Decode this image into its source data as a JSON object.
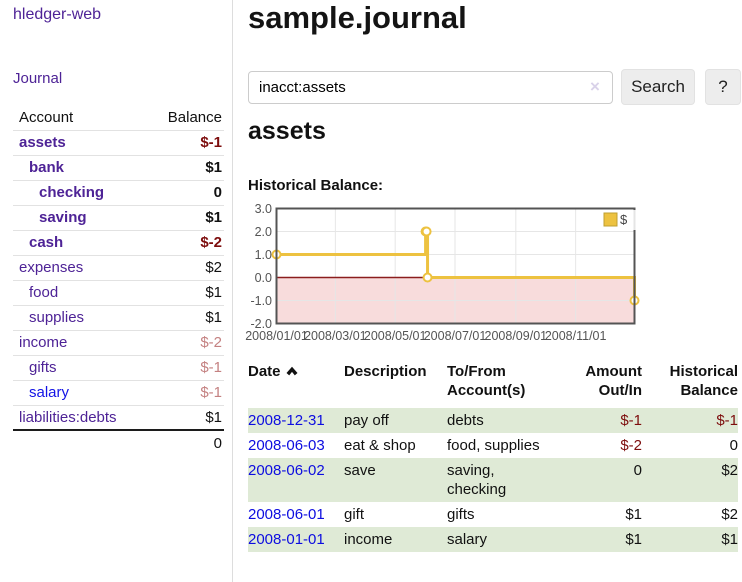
{
  "app": {
    "title": "hledger-web"
  },
  "sidebar": {
    "journal_link": "Journal",
    "accounts_table": {
      "headers": {
        "account": "Account",
        "balance": "Balance"
      },
      "rows": [
        {
          "name": "assets",
          "balance": "$-1",
          "level": 0,
          "bold": true,
          "negative": "strong"
        },
        {
          "name": "bank",
          "balance": "$1",
          "level": 1,
          "bold": true
        },
        {
          "name": "checking",
          "balance": "0",
          "level": 2,
          "bold": true
        },
        {
          "name": "saving",
          "balance": "$1",
          "level": 2,
          "bold": true
        },
        {
          "name": "cash",
          "balance": "$-2",
          "level": 1,
          "bold": true,
          "negative": "strong"
        },
        {
          "name": "expenses",
          "balance": "$2",
          "level": 0
        },
        {
          "name": "food",
          "balance": "$1",
          "level": 1
        },
        {
          "name": "supplies",
          "balance": "$1",
          "level": 1
        },
        {
          "name": "income",
          "balance": "$-2",
          "level": 0,
          "negative": "soft"
        },
        {
          "name": "gifts",
          "balance": "$-1",
          "level": 1,
          "negative": "soft"
        },
        {
          "name": "salary",
          "balance": "$-1",
          "level": 1,
          "negative": "soft",
          "unvisited": true
        },
        {
          "name": "liabilities:debts",
          "balance": "$1",
          "level": 0,
          "last": true
        }
      ],
      "total": "0"
    }
  },
  "main": {
    "title": "sample.journal",
    "search": {
      "value": "inacct:assets",
      "clear_label": "×",
      "button_label": "Search",
      "help_label": "?"
    },
    "account_heading": "assets",
    "chart_label": "Historical Balance:"
  },
  "chart_data": {
    "type": "line",
    "title": "Historical Balance:",
    "step": true,
    "series": [
      {
        "name": "$",
        "color": "#edc240",
        "points": [
          {
            "date": "2008-01-01",
            "value": 1
          },
          {
            "date": "2008-06-01",
            "value": 2
          },
          {
            "date": "2008-06-02",
            "value": 2
          },
          {
            "date": "2008-06-03",
            "value": 0
          },
          {
            "date": "2008-12-31",
            "value": -1
          }
        ]
      }
    ],
    "x_range": [
      "2008-01-01",
      "2008-12-31"
    ],
    "x_ticks": [
      "2008/01/01",
      "2008/03/01",
      "2008/05/01",
      "2008/07/01",
      "2008/09/01",
      "2008/11/01"
    ],
    "y_ticks": [
      3.0,
      2.0,
      1.0,
      0.0,
      -1.0,
      -2.0
    ],
    "ylim": [
      -2,
      3
    ],
    "grid": true,
    "legend": {
      "label": "$",
      "position": "top-right"
    },
    "colors": {
      "line": "#edc240",
      "marker_fill": "#ffffff",
      "negative_region": "#f8dcdc",
      "zero_line": "#8b1d1d",
      "border": "#545454",
      "gridline": "#e6e6e6",
      "tick_text": "#545454"
    }
  },
  "register_table": {
    "headers": [
      {
        "key": "date",
        "lines": [
          "Date"
        ],
        "align": "left",
        "sort": "asc"
      },
      {
        "key": "description",
        "lines": [
          "Description"
        ],
        "align": "left"
      },
      {
        "key": "accounts",
        "lines": [
          "To/From",
          "Account(s)"
        ],
        "align": "left"
      },
      {
        "key": "amount",
        "lines": [
          "Amount",
          "Out/In"
        ],
        "align": "right"
      },
      {
        "key": "balance",
        "lines": [
          "Historical",
          "Balance"
        ],
        "align": "right"
      }
    ],
    "rows": [
      {
        "date": "2008-12-31",
        "description": "pay off",
        "accounts": "debts",
        "amount": "$-1",
        "balance": "$-1"
      },
      {
        "date": "2008-06-03",
        "description": "eat & shop",
        "accounts": "food, supplies",
        "amount": "$-2",
        "balance": "0"
      },
      {
        "date": "2008-06-02",
        "description": "save",
        "accounts": "saving, checking",
        "amount": "0",
        "balance": "$2"
      },
      {
        "date": "2008-06-01",
        "description": "gift",
        "accounts": "gifts",
        "amount": "$1",
        "balance": "$2"
      },
      {
        "date": "2008-01-01",
        "description": "income",
        "accounts": "salary",
        "amount": "$1",
        "balance": "$1"
      }
    ]
  }
}
